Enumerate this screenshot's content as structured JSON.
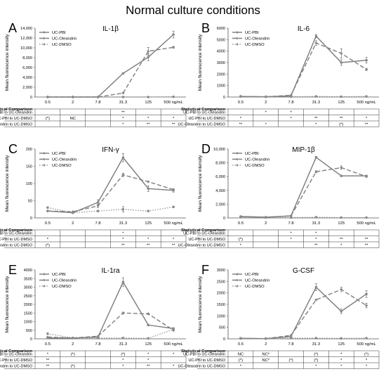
{
  "figure_title": "Normal culture conditions",
  "colors": {
    "pbi": "#7a7a7a",
    "ole": "#7f7f7f",
    "dmso": "#8c8c8c",
    "text": "#000000",
    "grid": "#000000"
  },
  "x_categories": [
    "0.5",
    "2",
    "7.8",
    "31.3",
    "125",
    "500 ng/mL"
  ],
  "ylabel": "Mean fluorescence intensity",
  "stats_title": "Statistical Comparison",
  "chart_data": [
    {
      "panel": "A",
      "type": "line",
      "title": "IL-1β",
      "ylim": [
        0,
        14000
      ],
      "yticks": [
        "0",
        "2,000",
        "4,000",
        "6,000",
        "8,000",
        "10,000",
        "12,000",
        "14,000"
      ],
      "legend": [
        "UC-PBI",
        "UC-Oleandrin",
        "UC-DMSO"
      ],
      "series": [
        {
          "name": "UC-PBI",
          "style": "solid",
          "values": [
            0,
            0,
            0,
            4800,
            8100,
            12700
          ],
          "err": [
            0,
            0,
            0,
            150,
            700,
            700
          ]
        },
        {
          "name": "UC-Oleandrin",
          "style": "dashed",
          "values": [
            0,
            0,
            0,
            800,
            9300,
            10100
          ],
          "err": [
            0,
            0,
            0,
            100,
            800,
            200
          ]
        },
        {
          "name": "UC-DMSO",
          "style": "dotted",
          "values": [
            0,
            0,
            0,
            0,
            0,
            50
          ],
          "err": [
            0,
            0,
            0,
            0,
            0,
            0
          ]
        }
      ],
      "stats": [
        {
          "label": "UC-PBI to UC-Oleandrin",
          "cells": [
            "",
            "",
            "",
            "**",
            "",
            ""
          ]
        },
        {
          "label": "UC-PBI to UC-DMSO",
          "cells": [
            "(*)",
            "NC",
            "",
            "*",
            "*",
            "*"
          ]
        },
        {
          "label": "UC-Oleandrin to UC-DMSO",
          "cells": [
            "",
            "",
            "",
            "*",
            "**",
            "**"
          ]
        }
      ]
    },
    {
      "panel": "B",
      "type": "line",
      "title": "IL-6",
      "ylim": [
        0,
        6000
      ],
      "yticks": [
        "0",
        "1000",
        "2000",
        "3000",
        "4000",
        "5000",
        "6000"
      ],
      "legend": [
        "UC-PBI",
        "UC-Oleandrin",
        "UC-DMSO"
      ],
      "series": [
        {
          "name": "UC-PBI",
          "style": "solid",
          "values": [
            50,
            20,
            100,
            5300,
            3000,
            3200
          ],
          "err": [
            0,
            0,
            0,
            150,
            250,
            250
          ]
        },
        {
          "name": "UC-Oleandrin",
          "style": "dashed",
          "values": [
            50,
            20,
            150,
            4700,
            3800,
            2400
          ],
          "err": [
            0,
            0,
            0,
            200,
            400,
            100
          ]
        },
        {
          "name": "UC-DMSO",
          "style": "dotted",
          "values": [
            60,
            30,
            30,
            50,
            30,
            50
          ],
          "err": [
            0,
            0,
            0,
            0,
            0,
            0
          ]
        }
      ],
      "stats": [
        {
          "label": "UC-PBI to UC-Oleandrin",
          "cells": [
            "",
            "*",
            "*",
            "",
            "",
            ""
          ]
        },
        {
          "label": "UC-PBI to UC-DMSO",
          "cells": [
            "*",
            "",
            "*",
            "**",
            "**",
            "*"
          ]
        },
        {
          "label": "UC-Oleandrin to UC-DMSO",
          "cells": [
            "**",
            "*",
            "",
            "*",
            "(*)",
            "**"
          ]
        }
      ]
    },
    {
      "panel": "C",
      "type": "line",
      "title": "IFN-γ",
      "ylim": [
        0,
        200
      ],
      "yticks": [
        "0",
        "50",
        "100",
        "150",
        "200"
      ],
      "legend": [
        "UC-PBI",
        "UC-Oleandrin",
        "UC-DMSO"
      ],
      "series": [
        {
          "name": "UC-PBI",
          "style": "solid",
          "values": [
            20,
            15,
            45,
            175,
            85,
            80
          ],
          "err": [
            0,
            0,
            8,
            12,
            8,
            5
          ]
        },
        {
          "name": "UC-Oleandrin",
          "style": "dashed",
          "values": [
            20,
            18,
            35,
            125,
            105,
            82
          ],
          "err": [
            0,
            0,
            5,
            5,
            0,
            0
          ]
        },
        {
          "name": "UC-DMSO",
          "style": "dotted",
          "values": [
            30,
            15,
            20,
            25,
            20,
            32
          ],
          "err": [
            0,
            0,
            0,
            8,
            0,
            0
          ]
        }
      ],
      "stats": [
        {
          "label": "UC-PBI to UC-Oleandrin",
          "cells": [
            "",
            "",
            "",
            "*",
            "",
            ""
          ]
        },
        {
          "label": "UC-PBI to UC-DMSO",
          "cells": [
            "*",
            "",
            "",
            "*",
            "*",
            "*"
          ]
        },
        {
          "label": "UC-Oleandrin to UC-DMSO",
          "cells": [
            "(*)",
            "",
            "",
            "**",
            "**",
            "**"
          ]
        }
      ]
    },
    {
      "panel": "D",
      "type": "line",
      "title": "MIP-1β",
      "ylim": [
        0,
        10000
      ],
      "yticks": [
        "0",
        "2,000",
        "4,000",
        "6,000",
        "8,000",
        "10,000"
      ],
      "legend": [
        "UC-PBI",
        "UC-Oleandrin",
        "UC-DMSO"
      ],
      "series": [
        {
          "name": "UC-PBI",
          "style": "solid",
          "values": [
            200,
            100,
            300,
            8800,
            6100,
            6100
          ],
          "err": [
            0,
            0,
            0,
            150,
            100,
            100
          ]
        },
        {
          "name": "UC-Oleandrin",
          "style": "dashed",
          "values": [
            200,
            100,
            300,
            6700,
            7300,
            6000
          ],
          "err": [
            0,
            0,
            0,
            150,
            250,
            100
          ]
        },
        {
          "name": "UC-DMSO",
          "style": "dotted",
          "values": [
            100,
            50,
            50,
            100,
            50,
            50
          ],
          "err": [
            0,
            0,
            0,
            0,
            0,
            0
          ]
        }
      ],
      "stats": [
        {
          "label": "UC-PBI to UC-Oleandrin",
          "cells": [
            "",
            "",
            "*",
            "*",
            "",
            ""
          ]
        },
        {
          "label": "UC-PBI to UC-DMSO",
          "cells": [
            "(*)",
            "",
            "*",
            "*",
            "**",
            "**"
          ]
        },
        {
          "label": "UC-Oleandrin to UC-DMSO",
          "cells": [
            "*",
            "",
            "",
            "**",
            "*",
            "**"
          ]
        }
      ]
    },
    {
      "panel": "E",
      "type": "line",
      "title": "IL-1ra",
      "ylim": [
        0,
        4000
      ],
      "yticks": [
        "0",
        "500",
        "1000",
        "1500",
        "2000",
        "2500",
        "3000",
        "3500",
        "4000"
      ],
      "legend": [
        "UC-PBI",
        "UC-Oleandrin",
        "UC-DMSO"
      ],
      "series": [
        {
          "name": "UC-PBI",
          "style": "solid",
          "values": [
            50,
            50,
            100,
            3300,
            800,
            600
          ],
          "err": [
            0,
            0,
            0,
            250,
            50,
            50
          ]
        },
        {
          "name": "UC-Oleandrin",
          "style": "dashed",
          "values": [
            100,
            50,
            150,
            1500,
            1450,
            500
          ],
          "err": [
            0,
            0,
            0,
            50,
            50,
            50
          ]
        },
        {
          "name": "UC-DMSO",
          "style": "dotted",
          "values": [
            300,
            50,
            50,
            50,
            30,
            550
          ],
          "err": [
            0,
            0,
            0,
            0,
            0,
            50
          ]
        }
      ],
      "stats": [
        {
          "label": "UC-PBI to UC-Oleandrin",
          "cells": [
            "*",
            "(*)",
            "",
            "(*)",
            "*",
            "*"
          ]
        },
        {
          "label": "UC-PBI to UC-DMSO",
          "cells": [
            "**",
            "",
            "",
            "*",
            "*",
            ""
          ]
        },
        {
          "label": "UC-Oleandrin to UC-DMSO",
          "cells": [
            "**",
            "(*)",
            "",
            "*",
            "**",
            "*"
          ]
        }
      ]
    },
    {
      "panel": "F",
      "type": "line",
      "title": "G-CSF",
      "ylim": [
        0,
        3000
      ],
      "yticks": [
        "0",
        "500",
        "1000",
        "1500",
        "2000",
        "2500",
        "3000"
      ],
      "legend": [
        "UC-PBI",
        "UC-Oleandrin",
        "UC-DMSO"
      ],
      "series": [
        {
          "name": "UC-PBI",
          "style": "solid",
          "values": [
            20,
            10,
            100,
            2250,
            1200,
            1950
          ],
          "err": [
            0,
            0,
            0,
            150,
            100,
            150
          ]
        },
        {
          "name": "UC-Oleandrin",
          "style": "dashed",
          "values": [
            20,
            10,
            150,
            1700,
            2150,
            1450
          ],
          "err": [
            0,
            0,
            0,
            0,
            100,
            100
          ]
        },
        {
          "name": "UC-DMSO",
          "style": "dotted",
          "values": [
            20,
            10,
            30,
            30,
            20,
            30
          ],
          "err": [
            0,
            0,
            0,
            0,
            0,
            0
          ]
        }
      ],
      "stats": [
        {
          "label": "UC-PBI to UC-Oleandrin",
          "cells": [
            "NC",
            "NC*",
            "",
            "(*)",
            "*",
            "(*)"
          ]
        },
        {
          "label": "UC-PBI to UC-DMSO",
          "cells": [
            "(*)",
            "NC*",
            "(*)",
            "(*)",
            "*",
            "*"
          ]
        },
        {
          "label": "UC-Oleandrin to UC-DMSO",
          "cells": [
            "*",
            "",
            "",
            "*",
            "*",
            "*"
          ]
        }
      ]
    }
  ]
}
